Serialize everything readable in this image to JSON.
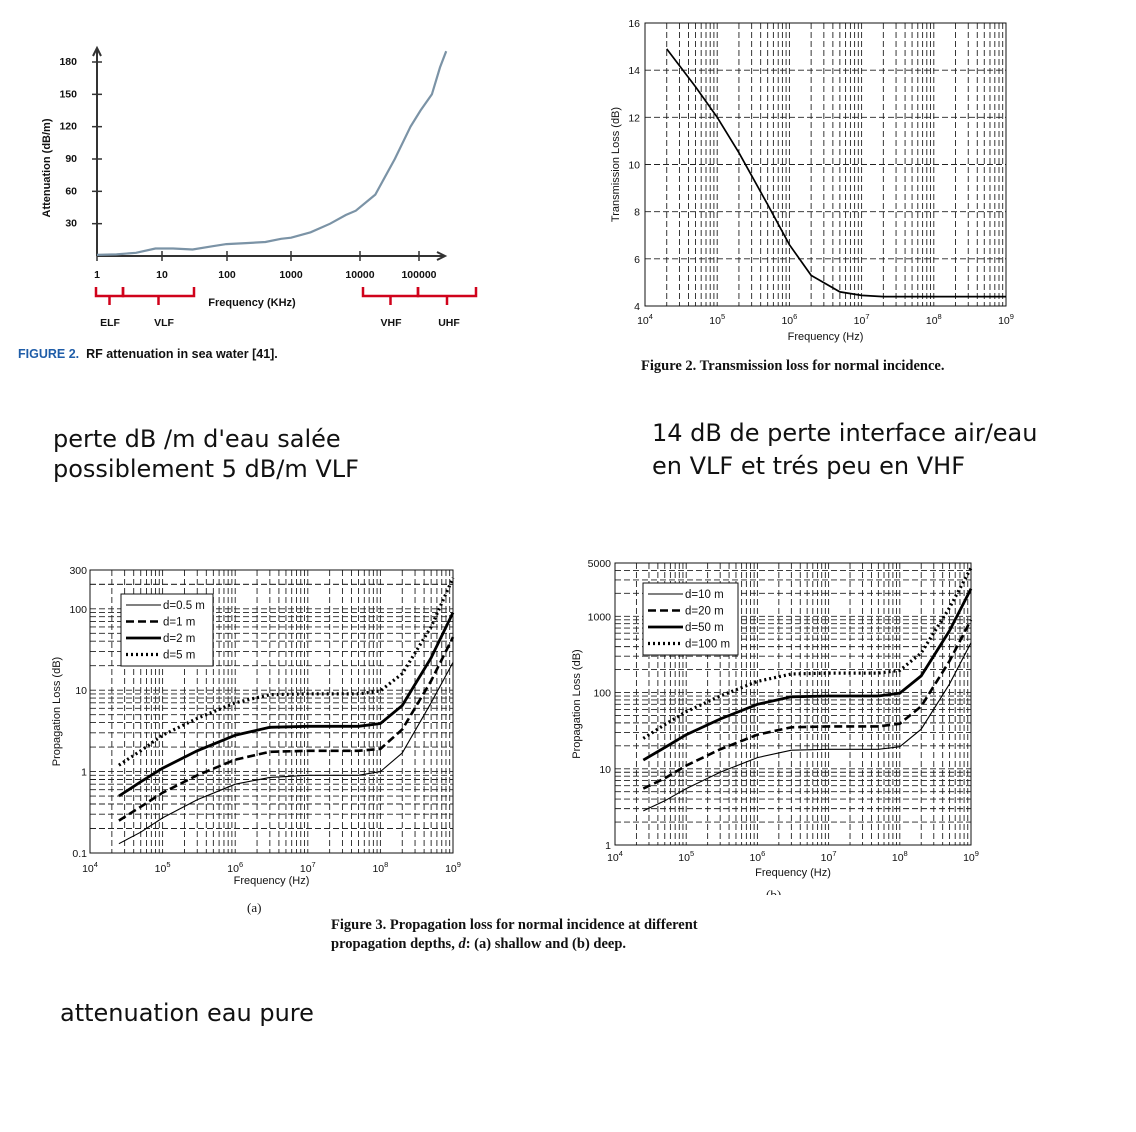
{
  "notes": {
    "top_left": [
      "perte dB /m  d'eau salée",
      "possiblement 5 dB/m VLF"
    ],
    "top_right": [
      "14 dB de perte interface air/eau",
      "en VLF  et trés peu en VHF"
    ],
    "bottom": "attenuation eau pure"
  },
  "captions": {
    "fig_rf_label": "FIGURE 2.",
    "fig_rf_text": "RF attenuation in sea water [41].",
    "fig_tl": "Figure 2. Transmission loss for normal incidence.",
    "fig_prop_line1": "Figure 3. Propagation loss for normal incidence at different",
    "fig_prop_line2_a": "propagation depths, ",
    "fig_prop_line2_d": "d",
    "fig_prop_line2_b": ": (a) shallow and (b) deep.",
    "sub_a": "(a)",
    "sub_b": "(b)"
  },
  "chart_data": [
    {
      "id": "rf-attenuation",
      "type": "line",
      "ylabel": "Attenuation (dB/m)",
      "xlabel": "Frequency (KHz)",
      "x_ticks": [
        "1",
        "10",
        "100",
        "1000",
        "10000",
        "100000"
      ],
      "y_ticks": [
        30,
        60,
        90,
        120,
        150,
        180
      ],
      "bands": [
        "ELF",
        "VLF",
        "VHF",
        "UHF"
      ],
      "colors": {
        "line": "#7b93a6",
        "bands": "#d0021b",
        "caption_label": "#1f5da8"
      },
      "series": [
        {
          "x": [
            1,
            2,
            4,
            8,
            15,
            30,
            60,
            100,
            200,
            400,
            700,
            1000,
            2000,
            4000,
            7000,
            10000,
            20000,
            40000,
            70000,
            100000,
            150000,
            200000,
            250000
          ],
          "values": [
            1,
            1.5,
            3,
            7,
            7,
            6,
            9,
            11,
            12,
            13,
            16,
            17,
            22,
            30,
            38,
            42,
            57,
            90,
            120,
            135,
            150,
            175,
            190
          ]
        }
      ],
      "xlim": [
        1,
        250000
      ],
      "ylim": [
        0,
        190
      ],
      "x_scale": "log"
    },
    {
      "id": "transmission-loss",
      "type": "line",
      "xlabel": "Frequency (Hz)",
      "ylabel": "Transmission Loss (dB)",
      "x_ticks": [
        "10^4",
        "10^5",
        "10^6",
        "10^7",
        "10^8",
        "10^9"
      ],
      "y_ticks": [
        4,
        6,
        8,
        10,
        12,
        14,
        16
      ],
      "x_scale": "log",
      "xlim": [
        10000,
        1000000000
      ],
      "ylim": [
        4,
        16
      ],
      "grid": true,
      "series": [
        {
          "x": [
            20000,
            50000,
            100000,
            200000,
            500000,
            1000000,
            2000000,
            5000000,
            10000000,
            20000000,
            100000000,
            1000000000
          ],
          "values": [
            14.9,
            13.3,
            12.0,
            10.5,
            8.3,
            6.6,
            5.3,
            4.6,
            4.45,
            4.4,
            4.4,
            4.4
          ]
        }
      ]
    },
    {
      "id": "propagation-shallow",
      "type": "line",
      "xlabel": "Frequency (Hz)",
      "ylabel": "Propagation Loss (dB)",
      "x_ticks": [
        "10^4",
        "10^5",
        "10^6",
        "10^7",
        "10^8",
        "10^9"
      ],
      "y_ticks": [
        "0.1",
        "1",
        "10",
        "100",
        "300"
      ],
      "x_scale": "log",
      "y_scale": "log",
      "xlim": [
        10000,
        1000000000
      ],
      "ylim": [
        0.1,
        300
      ],
      "grid": true,
      "legend_position": "top-left",
      "series": [
        {
          "name": "d=0.5 m",
          "style": "thin",
          "x": [
            25000,
            50000,
            100000,
            300000,
            1000000,
            3000000,
            10000000,
            50000000,
            100000000,
            200000000,
            500000000,
            1000000000
          ],
          "values": [
            0.13,
            0.18,
            0.27,
            0.45,
            0.7,
            0.85,
            0.9,
            0.9,
            1.0,
            1.7,
            7,
            22
          ]
        },
        {
          "name": "d=1 m",
          "style": "dashed",
          "x": [
            25000,
            50000,
            100000,
            300000,
            1000000,
            3000000,
            10000000,
            50000000,
            100000000,
            200000000,
            500000000,
            1000000000
          ],
          "values": [
            0.25,
            0.37,
            0.55,
            0.9,
            1.4,
            1.75,
            1.8,
            1.8,
            1.9,
            3.3,
            13,
            45
          ]
        },
        {
          "name": "d=2 m",
          "style": "thick",
          "x": [
            25000,
            50000,
            100000,
            300000,
            1000000,
            3000000,
            10000000,
            50000000,
            100000000,
            200000000,
            500000000,
            1000000000
          ],
          "values": [
            0.5,
            0.75,
            1.1,
            1.8,
            2.8,
            3.5,
            3.6,
            3.6,
            3.9,
            6.5,
            25,
            90
          ]
        },
        {
          "name": "d=5 m",
          "style": "dotted",
          "x": [
            25000,
            50000,
            100000,
            300000,
            1000000,
            3000000,
            10000000,
            50000000,
            100000000,
            200000000,
            500000000,
            1000000000
          ],
          "values": [
            1.2,
            1.8,
            2.8,
            4.5,
            7,
            8.8,
            9,
            9,
            9.8,
            16,
            60,
            240
          ]
        }
      ]
    },
    {
      "id": "propagation-deep",
      "type": "line",
      "xlabel": "Frequency (Hz)",
      "ylabel": "Propagation Loss (dB)",
      "x_ticks": [
        "10^4",
        "10^5",
        "10^6",
        "10^7",
        "10^8",
        "10^9"
      ],
      "y_ticks": [
        "1",
        "10",
        "100",
        "1000",
        "5000"
      ],
      "x_scale": "log",
      "y_scale": "log",
      "xlim": [
        10000,
        1000000000
      ],
      "ylim": [
        1,
        5000
      ],
      "grid": true,
      "legend_position": "top-left",
      "series": [
        {
          "name": "d=10 m",
          "style": "thin",
          "x": [
            25000,
            50000,
            100000,
            300000,
            1000000,
            3000000,
            10000000,
            50000000,
            100000000,
            200000000,
            500000000,
            1000000000
          ],
          "values": [
            2.8,
            3.8,
            5.5,
            9,
            14,
            17.5,
            18,
            18,
            19.5,
            33,
            130,
            450
          ]
        },
        {
          "name": "d=20 m",
          "style": "dashed",
          "x": [
            25000,
            50000,
            100000,
            300000,
            1000000,
            3000000,
            10000000,
            50000000,
            100000000,
            200000000,
            500000000,
            1000000000
          ],
          "values": [
            5.5,
            7.5,
            11,
            18,
            28,
            35,
            36,
            36,
            39,
            66,
            260,
            900
          ]
        },
        {
          "name": "d=50 m",
          "style": "thick",
          "x": [
            25000,
            50000,
            100000,
            300000,
            1000000,
            3000000,
            10000000,
            50000000,
            100000000,
            200000000,
            500000000,
            1000000000
          ],
          "values": [
            13,
            19,
            28,
            45,
            70,
            88,
            90,
            90,
            98,
            165,
            650,
            2300
          ]
        },
        {
          "name": "d=100 m",
          "style": "dotted",
          "x": [
            25000,
            50000,
            100000,
            300000,
            1000000,
            3000000,
            10000000,
            50000000,
            100000000,
            200000000,
            500000000,
            1000000000
          ],
          "values": [
            25,
            38,
            56,
            90,
            140,
            175,
            180,
            180,
            195,
            330,
            1300,
            4300
          ]
        }
      ]
    }
  ]
}
